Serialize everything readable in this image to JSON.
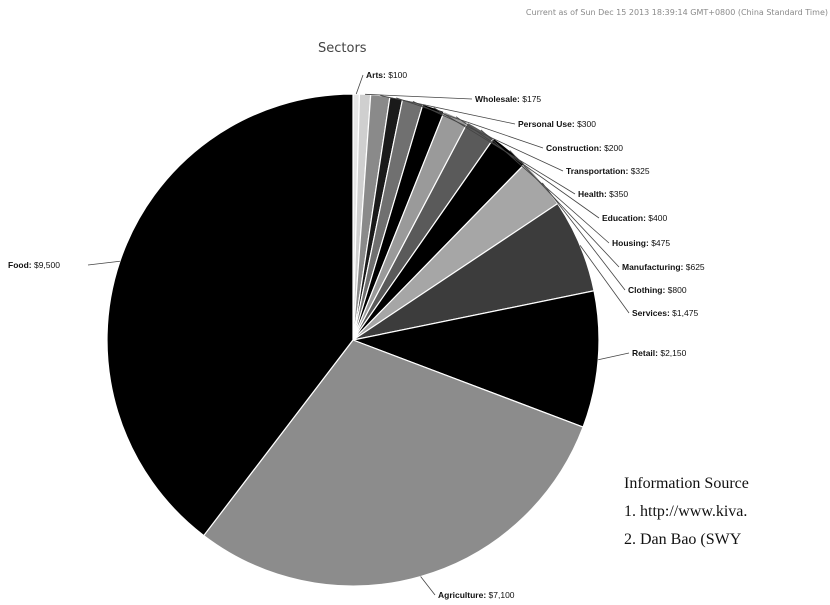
{
  "timestamp": "Current as of Sun Dec 15 2013 18:39:14 GMT+0800 (China Standard Time)",
  "chart_data": {
    "type": "pie",
    "title": "Sectors",
    "currency_symbol": "$",
    "slices": [
      {
        "name": "Food",
        "value": 9500,
        "label": "$9,500",
        "color": "#000000"
      },
      {
        "name": "Agriculture",
        "value": 7100,
        "label": "$7,100",
        "color": "#8c8c8c"
      },
      {
        "name": "Retail",
        "value": 2150,
        "label": "$2,150",
        "color": "#000000"
      },
      {
        "name": "Services",
        "value": 1475,
        "label": "$1,475",
        "color": "#3c3c3c"
      },
      {
        "name": "Clothing",
        "value": 800,
        "label": "$800",
        "color": "#a6a6a6"
      },
      {
        "name": "Manufacturing",
        "value": 625,
        "label": "$625",
        "color": "#000000"
      },
      {
        "name": "Housing",
        "value": 475,
        "label": "$475",
        "color": "#5a5a5a"
      },
      {
        "name": "Education",
        "value": 400,
        "label": "$400",
        "color": "#9a9a9a"
      },
      {
        "name": "Health",
        "value": 350,
        "label": "$350",
        "color": "#000000"
      },
      {
        "name": "Transportation",
        "value": 325,
        "label": "$325",
        "color": "#707070"
      },
      {
        "name": "Construction",
        "value": 200,
        "label": "$200",
        "color": "#1a1a1a"
      },
      {
        "name": "Personal Use",
        "value": 300,
        "label": "$300",
        "color": "#8a8a8a"
      },
      {
        "name": "Wholesale",
        "value": 175,
        "label": "$175",
        "color": "#cfcfcf"
      },
      {
        "name": "Arts",
        "value": 100,
        "label": "$100",
        "color": "#e6e6e6"
      }
    ]
  },
  "sources": {
    "heading": "Information Source",
    "items": [
      "1. http://www.kiva.",
      "2. Dan Bao (SWY"
    ]
  }
}
